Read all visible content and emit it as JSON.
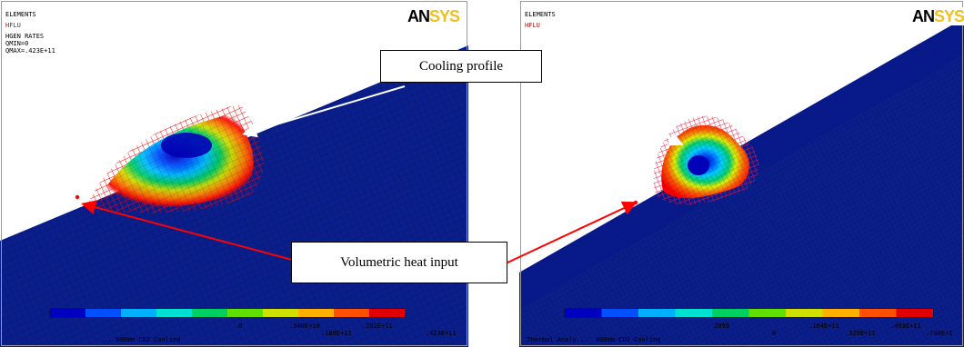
{
  "left_panel": {
    "header": [
      "ELEMENTS",
      "HFLU",
      "HGEN RATES",
      "QMIN=0",
      "QMAX=.423E+11"
    ],
    "legend_ticks_top": [
      "0",
      ".940E+10",
      ".282E+11"
    ],
    "legend_ticks_bottom": [
      ".188E+11",
      ".423E+11"
    ],
    "footer": "... 300mm CO2 Cooling"
  },
  "right_panel": {
    "header": [
      "ELEMENTS",
      "HFLU"
    ],
    "legend_ticks_top": [
      "2099",
      ".164E+11",
      ".493E+11"
    ],
    "legend_ticks_bottom": [
      "0",
      ".329E+11",
      ".740E+1"
    ],
    "footer": "Thermal Analy...  300mm CO2 Cooling"
  },
  "logo": {
    "an": "AN",
    "sys": "SYS"
  },
  "callouts": {
    "cooling_profile": "Cooling profile",
    "volumetric_heat_input": "Volumetric heat input"
  },
  "colors": {
    "mesh_blue": "#0b1f8c",
    "mesh_line": "#06146a",
    "callout_arrow_white": "#ffffff",
    "callout_arrow_red": "#ff0000",
    "contour_bands": [
      "#0000c0",
      "#0050ff",
      "#00b0ff",
      "#00e0d0",
      "#00d060",
      "#60e000",
      "#d0e000",
      "#ffb000",
      "#ff5000",
      "#e00000"
    ]
  }
}
